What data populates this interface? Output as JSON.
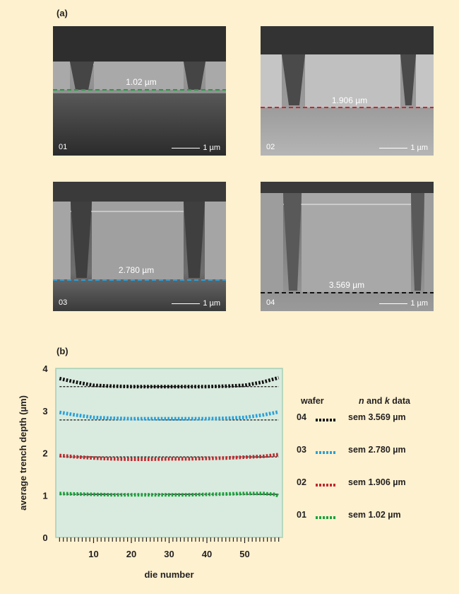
{
  "panel_a_label": "(a)",
  "panel_b_label": "(b)",
  "sem_images": [
    {
      "id": "01",
      "measure": "1.02 µm",
      "scale": "1 µm",
      "line_color": "#1aa23c"
    },
    {
      "id": "02",
      "measure": "1.906 µm",
      "scale": "1 µm",
      "line_color": "#d2232a"
    },
    {
      "id": "03",
      "measure": "2.780 µm",
      "scale": "1 µm",
      "line_color": "#2a9fd8"
    },
    {
      "id": "04",
      "measure": "3.569 µm",
      "scale": "1 µm",
      "line_color": "#111111"
    }
  ],
  "legend": {
    "wafer_header": "wafer",
    "nk_header_italic_n": "n",
    "nk_header_and": " and ",
    "nk_header_italic_k": "k",
    "nk_header_data": " data",
    "rows": [
      {
        "wafer": "04",
        "label": "sem 3.569 µm",
        "color": "#111111"
      },
      {
        "wafer": "03",
        "label": "sem 2.780 µm",
        "color": "#2a9fd8"
      },
      {
        "wafer": "02",
        "label": "sem 1.906 µm",
        "color": "#c0272d"
      },
      {
        "wafer": "01",
        "label": "sem 1.02 µm",
        "color": "#1aa23c"
      }
    ]
  },
  "chart_data": {
    "type": "line",
    "xlabel": "die number",
    "ylabel": "average trench depth (µm)",
    "xlim": [
      1,
      59
    ],
    "ylim": [
      0,
      4
    ],
    "xticks": [
      10,
      20,
      30,
      40,
      50
    ],
    "yticks": [
      0,
      1,
      2,
      3,
      4
    ],
    "background": "#d9ebde",
    "series": [
      {
        "name": "04",
        "color": "#111111",
        "sem_reference": 3.569,
        "x": [
          1,
          5,
          10,
          15,
          20,
          25,
          30,
          35,
          40,
          45,
          50,
          55,
          59
        ],
        "y": [
          3.76,
          3.68,
          3.6,
          3.58,
          3.57,
          3.57,
          3.57,
          3.57,
          3.57,
          3.58,
          3.6,
          3.68,
          3.78
        ]
      },
      {
        "name": "03",
        "color": "#2a9fd8",
        "sem_reference": 2.78,
        "x": [
          1,
          5,
          10,
          15,
          20,
          25,
          30,
          35,
          40,
          45,
          50,
          55,
          59
        ],
        "y": [
          2.96,
          2.9,
          2.84,
          2.82,
          2.81,
          2.81,
          2.81,
          2.81,
          2.81,
          2.82,
          2.84,
          2.9,
          2.97
        ]
      },
      {
        "name": "02",
        "color": "#c0272d",
        "sem_reference": 1.906,
        "x": [
          1,
          5,
          10,
          15,
          20,
          25,
          30,
          35,
          40,
          45,
          50,
          55,
          59
        ],
        "y": [
          1.94,
          1.91,
          1.88,
          1.86,
          1.85,
          1.85,
          1.86,
          1.86,
          1.87,
          1.88,
          1.9,
          1.92,
          1.96
        ]
      },
      {
        "name": "01",
        "color": "#1aa23c",
        "sem_reference": 1.02,
        "x": [
          1,
          5,
          10,
          15,
          20,
          25,
          30,
          35,
          40,
          45,
          50,
          55,
          58,
          59
        ],
        "y": [
          1.04,
          1.03,
          1.02,
          1.01,
          1.01,
          1.01,
          1.01,
          1.01,
          1.02,
          1.03,
          1.04,
          1.04,
          1.02,
          0.98
        ]
      }
    ]
  }
}
